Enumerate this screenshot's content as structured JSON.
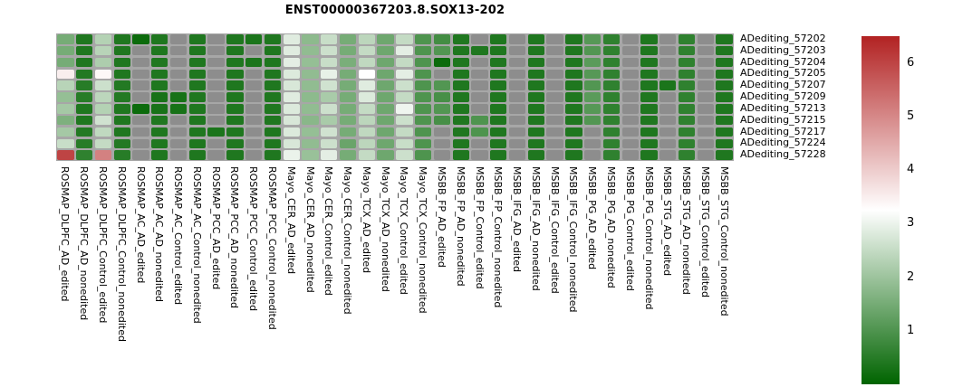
{
  "title": "ENST00000367203.8.SOX13-202",
  "chart_data": {
    "type": "heatmap",
    "title": "ENST00000367203.8.SOX13-202",
    "legend_position": "right",
    "grid": false,
    "row_labels": [
      "ADediting_57202",
      "ADediting_57203",
      "ADediting_57204",
      "ADediting_57205",
      "ADediting_57207",
      "ADediting_57209",
      "ADediting_57213",
      "ADediting_57215",
      "ADediting_57217",
      "ADediting_57224",
      "ADediting_57228"
    ],
    "col_labels": [
      "ROSMAP_DLPFC_AD_edited",
      "ROSMAP_DLPFC_AD_nonedited",
      "ROSMAP_DLPFC_Control_edited",
      "ROSMAP_DLPFC_Control_nonedited",
      "ROSMAP_AC_AD_edited",
      "ROSMAP_AC_AD_nonedited",
      "ROSMAP_AC_Control_edited",
      "ROSMAP_AC_Control_nonedited",
      "ROSMAP_PCC_AD_edited",
      "ROSMAP_PCC_AD_nonedited",
      "ROSMAP_PCC_Control_edited",
      "ROSMAP_PCC_Control_nonedited",
      "Mayo_CER_AD_edited",
      "Mayo_CER_AD_nonedited",
      "Mayo_CER_Control_edited",
      "Mayo_CER_Control_nonedited",
      "Mayo_TCX_AD_edited",
      "Mayo_TCX_AD_nonedited",
      "Mayo_TCX_Control_edited",
      "Mayo_TCX_Control_nonedited",
      "MSBB_FP_AD_edited",
      "MSBB_FP_AD_nonedited",
      "MSBB_FP_Control_edited",
      "MSBB_FP_Control_nonedited",
      "MSBB_IFG_AD_edited",
      "MSBB_IFG_AD_nonedited",
      "MSBB_IFG_Control_edited",
      "MSBB_IFG_Control_nonedited",
      "MSBB_PG_AD_edited",
      "MSBB_PG_AD_nonedited",
      "MSBB_PG_Control_edited",
      "MSBB_PG_Control_nonedited",
      "MSBB_STG_AD_edited",
      "MSBB_STG_AD_nonedited",
      "MSBB_STG_Control_edited",
      "MSBB_STG_Control_nonedited"
    ],
    "values": [
      [
        1.5,
        0.4,
        2.3,
        0.4,
        0.15,
        0.4,
        null,
        0.4,
        null,
        0.4,
        0.35,
        0.4,
        2.85,
        1.8,
        2.55,
        1.5,
        2.4,
        1.4,
        2.5,
        1.0,
        0.85,
        0.4,
        null,
        0.4,
        null,
        0.4,
        null,
        0.4,
        1.1,
        0.6,
        null,
        0.4,
        null,
        0.6,
        null,
        0.4
      ],
      [
        1.5,
        0.4,
        2.35,
        0.4,
        null,
        0.4,
        null,
        0.4,
        null,
        0.4,
        null,
        0.4,
        2.85,
        1.85,
        2.6,
        1.5,
        2.5,
        1.4,
        2.9,
        1.0,
        1.05,
        0.4,
        0.4,
        0.4,
        null,
        0.4,
        null,
        0.4,
        1.05,
        0.6,
        null,
        0.4,
        null,
        0.6,
        null,
        0.4
      ],
      [
        1.5,
        0.4,
        2.2,
        0.4,
        null,
        0.4,
        null,
        0.4,
        null,
        0.4,
        0.35,
        0.4,
        2.9,
        1.9,
        2.55,
        1.55,
        2.45,
        1.4,
        2.5,
        1.0,
        0.15,
        0.4,
        null,
        0.4,
        null,
        0.4,
        null,
        0.4,
        1.15,
        0.6,
        null,
        0.4,
        null,
        0.6,
        null,
        0.4
      ],
      [
        3.5,
        0.45,
        3.35,
        0.4,
        null,
        0.4,
        null,
        0.4,
        null,
        0.4,
        null,
        0.4,
        2.8,
        1.85,
        2.95,
        1.5,
        3.25,
        1.4,
        2.9,
        1.0,
        null,
        0.4,
        null,
        0.4,
        null,
        0.4,
        null,
        0.4,
        1.1,
        0.6,
        null,
        0.4,
        null,
        0.6,
        null,
        0.4
      ],
      [
        2.35,
        0.5,
        2.6,
        0.45,
        null,
        0.4,
        null,
        0.4,
        null,
        0.4,
        null,
        0.4,
        2.75,
        1.85,
        2.65,
        1.5,
        2.85,
        1.4,
        2.6,
        1.0,
        1.05,
        0.4,
        null,
        0.4,
        null,
        0.4,
        null,
        0.4,
        1.05,
        0.6,
        null,
        0.4,
        0.35,
        0.6,
        null,
        0.4
      ],
      [
        1.9,
        0.5,
        2.4,
        0.45,
        null,
        0.3,
        0.3,
        0.4,
        null,
        0.4,
        null,
        0.4,
        2.85,
        1.8,
        2.15,
        1.5,
        2.8,
        1.4,
        2.5,
        1.0,
        0.9,
        0.4,
        null,
        0.4,
        null,
        0.4,
        null,
        0.4,
        1.15,
        0.6,
        null,
        0.4,
        null,
        0.6,
        null,
        0.4
      ],
      [
        2.1,
        0.4,
        2.3,
        0.4,
        0.15,
        0.3,
        0.3,
        0.4,
        null,
        0.4,
        null,
        0.4,
        2.8,
        1.85,
        2.6,
        1.5,
        2.5,
        1.4,
        3.05,
        1.0,
        1.05,
        0.4,
        null,
        0.4,
        null,
        0.4,
        null,
        0.4,
        1.1,
        0.6,
        null,
        0.4,
        null,
        0.6,
        null,
        0.4
      ],
      [
        1.6,
        0.4,
        2.65,
        0.4,
        null,
        0.4,
        null,
        0.4,
        null,
        0.4,
        null,
        0.4,
        2.75,
        1.75,
        2.15,
        1.5,
        2.4,
        1.4,
        2.6,
        1.0,
        0.9,
        0.4,
        1.0,
        0.4,
        null,
        0.4,
        null,
        0.4,
        1.05,
        0.6,
        null,
        0.4,
        null,
        0.6,
        null,
        0.4
      ],
      [
        2.1,
        0.45,
        2.45,
        0.4,
        null,
        0.4,
        null,
        0.4,
        0.35,
        0.4,
        null,
        0.4,
        2.8,
        1.9,
        2.65,
        1.5,
        2.45,
        1.4,
        2.5,
        1.0,
        null,
        0.4,
        1.0,
        0.4,
        null,
        0.4,
        null,
        0.4,
        null,
        0.6,
        null,
        0.4,
        null,
        0.6,
        null,
        0.4
      ],
      [
        2.55,
        0.5,
        2.5,
        0.45,
        null,
        0.4,
        null,
        0.4,
        null,
        0.4,
        null,
        0.4,
        2.75,
        1.85,
        2.6,
        1.35,
        2.4,
        1.4,
        2.55,
        1.0,
        null,
        0.4,
        null,
        0.4,
        null,
        0.4,
        null,
        0.4,
        null,
        0.6,
        null,
        0.4,
        null,
        0.6,
        null,
        0.4
      ],
      [
        6.0,
        0.6,
        5.1,
        0.5,
        null,
        0.4,
        null,
        0.4,
        null,
        0.4,
        null,
        0.4,
        3.0,
        1.95,
        2.9,
        1.5,
        2.5,
        1.4,
        2.6,
        1.0,
        null,
        0.4,
        null,
        0.4,
        null,
        0.4,
        null,
        0.4,
        null,
        0.6,
        null,
        0.4,
        null,
        0.6,
        null,
        0.4
      ]
    ],
    "color_scale": {
      "vmin": 0,
      "vmid": 3.25,
      "vmax": 6.5,
      "low": "#006400",
      "mid": "#ffffff",
      "high": "#b22222",
      "na_color": "#8d8d8d",
      "panel_bg": "#a7a7a7"
    },
    "colorbar_ticks": [
      "1",
      "2",
      "3",
      "4",
      "5",
      "6"
    ]
  }
}
